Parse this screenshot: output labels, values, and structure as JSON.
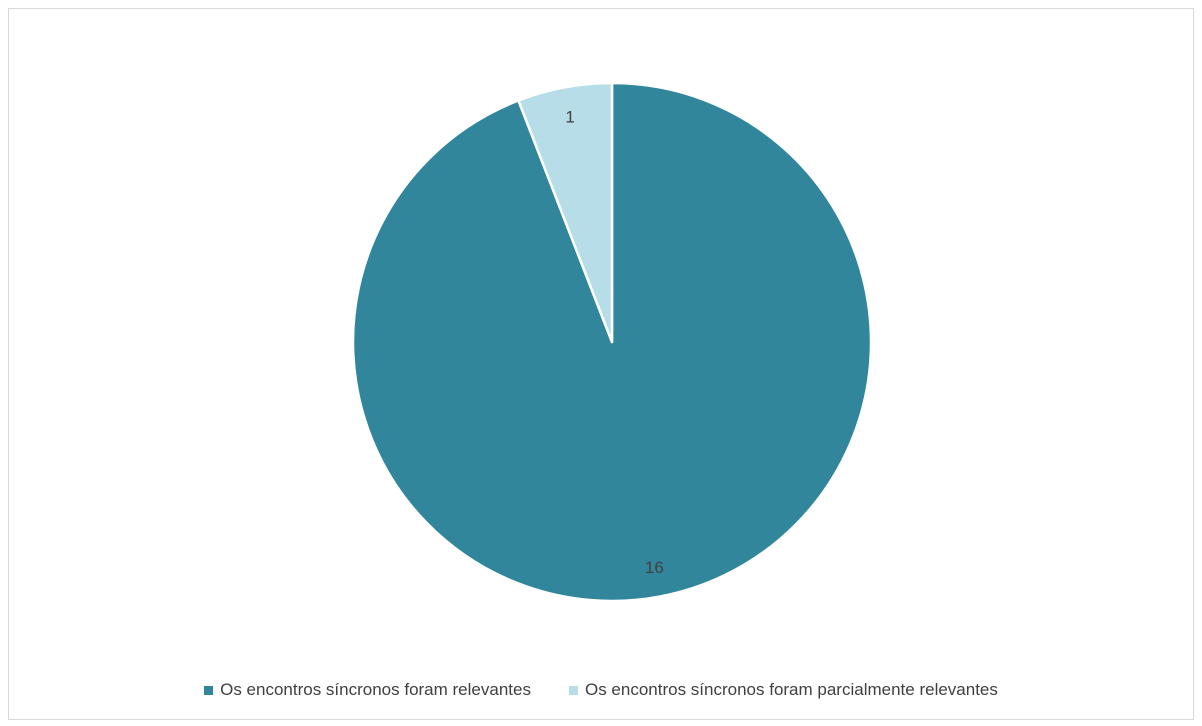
{
  "chart_data": {
    "type": "pie",
    "title": "",
    "categories": [
      "Os encontros síncronos foram relevantes",
      "Os encontros síncronos foram parcialmente relevantes"
    ],
    "values": [
      16,
      1
    ],
    "data_labels": [
      "16",
      "1"
    ],
    "colors": [
      "#31869b",
      "#b7dee8"
    ],
    "slice_border_color": "#ffffff",
    "start_angle": "top, clockwise",
    "legend_position": "bottom"
  }
}
